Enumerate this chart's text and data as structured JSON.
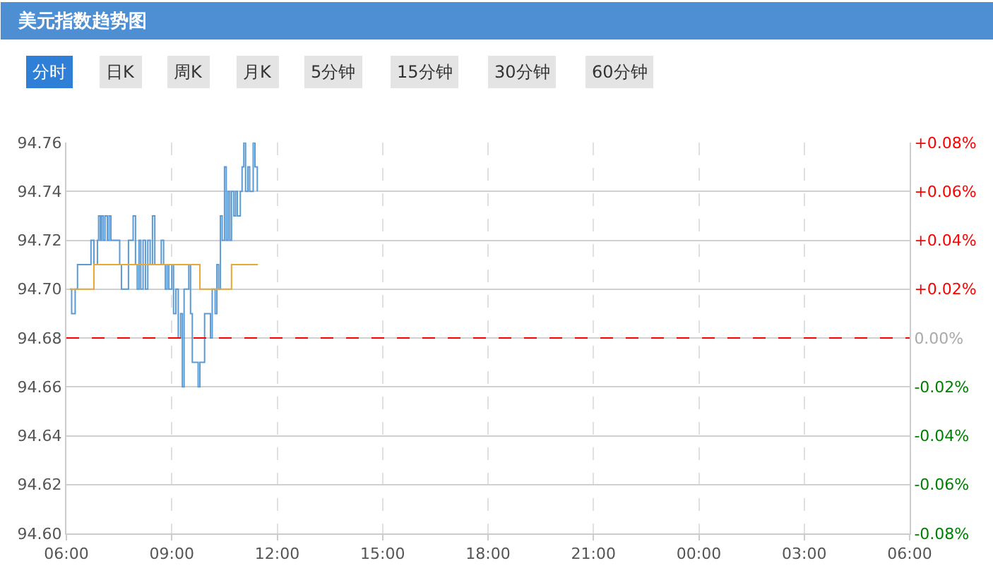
{
  "chart_data": {
    "type": "step",
    "title": "美元指数趋势图",
    "annotations": [
      "分时",
      "日K",
      "周K",
      "月K",
      "5分钟",
      "15分钟",
      "30分钟",
      "60分钟"
    ],
    "xlim": [
      "--01-01T06:00",
      "--01-02T06:00"
    ],
    "xticks": [
      {
        "value": "--01-01T06:00",
        "label": "06:00"
      },
      {
        "value": "--01-01T09:00",
        "label": "09:00"
      },
      {
        "value": "--01-01T12:00",
        "label": "12:00"
      },
      {
        "value": "--01-01T15:00",
        "label": "15:00"
      },
      {
        "value": "--01-01T18:00",
        "label": "18:00"
      },
      {
        "value": "--01-01T21:00",
        "label": "21:00"
      },
      {
        "value": "--01-02T00:00",
        "label": "00:00"
      },
      {
        "value": "--01-02T03:00",
        "label": "03:00"
      },
      {
        "value": "--01-02T06:00",
        "label": "06:00"
      }
    ],
    "ylim": [
      94.6,
      94.76
    ],
    "yticks": [
      {
        "value": 94.6,
        "label": "94.60"
      },
      94.62,
      94.64,
      94.66,
      94.68,
      {
        "value": 94.7,
        "label": "94.70"
      },
      94.72,
      94.74,
      94.76
    ],
    "y2lim": [
      -0.08,
      0.08
    ],
    "y2ticks": [
      {
        "value": -0.08,
        "label": "-0.08%"
      },
      {
        "value": -0.06,
        "label": "-0.06%"
      },
      {
        "value": -0.04,
        "label": "-0.04%"
      },
      {
        "value": -0.02,
        "label": "-0.02%"
      },
      {
        "value": 0,
        "label": "0.00%"
      },
      {
        "value": 0.02,
        "label": "+0.02%"
      },
      {
        "value": 0.04,
        "label": "+0.04%"
      },
      {
        "value": 0.06,
        "label": "+0.06%"
      },
      {
        "value": 0.08,
        "label": "+0.08%"
      }
    ],
    "grid": true,
    "ref_lines": [
      {
        "axis": "y",
        "value": 94.68,
        "color": "#ff0000",
        "line_style": "dashed"
      }
    ],
    "series": [
      {
        "color": "#5b9bd5",
        "x": [
          "--01-01T06:06",
          "--01-01T06:09",
          "--01-01T06:15",
          "--01-01T06:19",
          "--01-01T06:39",
          "--01-01T06:42",
          "--01-01T06:47",
          "--01-01T06:53",
          "--01-01T06:55",
          "--01-01T06:58",
          "--01-01T07:00",
          "--01-01T07:03",
          "--01-01T07:06",
          "--01-01T07:10",
          "--01-01T07:13",
          "--01-01T07:16",
          "--01-01T07:23",
          "--01-01T07:31",
          "--01-01T07:34",
          "--01-01T07:43",
          "--01-01T07:46",
          "--01-01T07:51",
          "--01-01T07:54",
          "--01-01T07:58",
          "--01-01T08:01",
          "--01-01T08:04",
          "--01-01T08:07",
          "--01-01T08:11",
          "--01-01T08:15",
          "--01-01T08:19",
          "--01-01T08:23",
          "--01-01T08:27",
          "--01-01T08:31",
          "--01-01T08:39",
          "--01-01T08:42",
          "--01-01T08:46",
          "--01-01T08:49",
          "--01-01T08:52",
          "--01-01T08:55",
          "--01-01T09:00",
          "--01-01T09:03",
          "--01-01T09:07",
          "--01-01T09:11",
          "--01-01T09:15",
          "--01-01T09:18",
          "--01-01T09:21",
          "--01-01T09:26",
          "--01-01T09:29",
          "--01-01T09:32",
          "--01-01T09:35",
          "--01-01T09:42",
          "--01-01T09:45",
          "--01-01T09:48",
          "--01-01T09:53",
          "--01-01T09:56",
          "--01-01T10:01",
          "--01-01T10:06",
          "--01-01T10:09",
          "--01-01T10:14",
          "--01-01T10:17",
          "--01-01T10:20",
          "--01-01T10:23",
          "--01-01T10:26",
          "--01-01T10:30",
          "--01-01T10:33",
          "--01-01T10:36",
          "--01-01T10:39",
          "--01-01T10:42",
          "--01-01T10:46",
          "--01-01T10:49",
          "--01-01T10:52",
          "--01-01T10:57",
          "--01-01T11:00",
          "--01-01T11:03",
          "--01-01T11:06",
          "--01-01T11:10",
          "--01-01T11:13",
          "--01-01T11:16",
          "--01-01T11:19",
          "--01-01T11:22",
          "--01-01T11:26"
        ],
        "values": [
          94.7,
          94.69,
          94.7,
          94.71,
          94.71,
          94.72,
          94.71,
          94.72,
          94.73,
          94.72,
          94.73,
          94.72,
          94.73,
          94.72,
          94.73,
          94.72,
          94.72,
          94.71,
          94.7,
          94.7,
          94.72,
          94.72,
          94.73,
          94.71,
          94.7,
          94.72,
          94.7,
          94.72,
          94.7,
          94.72,
          94.71,
          94.73,
          94.71,
          94.71,
          94.72,
          94.71,
          94.7,
          94.71,
          94.7,
          94.71,
          94.69,
          94.7,
          94.68,
          94.69,
          94.66,
          94.7,
          94.7,
          94.71,
          94.69,
          94.67,
          94.67,
          94.66,
          94.67,
          94.67,
          94.69,
          94.69,
          94.68,
          94.7,
          94.69,
          94.71,
          94.7,
          94.73,
          94.72,
          94.75,
          94.72,
          94.74,
          94.72,
          94.74,
          94.73,
          94.74,
          94.73,
          94.74,
          94.75,
          94.76,
          94.74,
          94.75,
          94.74,
          94.74,
          94.76,
          94.75,
          94.74
        ]
      },
      {
        "color": "#e8a838",
        "x": [
          "--01-01T06:06",
          "--01-01T06:47",
          "--01-01T09:48",
          "--01-01T10:42",
          "--01-01T11:27"
        ],
        "values": [
          94.7,
          94.71,
          94.7,
          94.71,
          94.71
        ]
      }
    ]
  }
}
